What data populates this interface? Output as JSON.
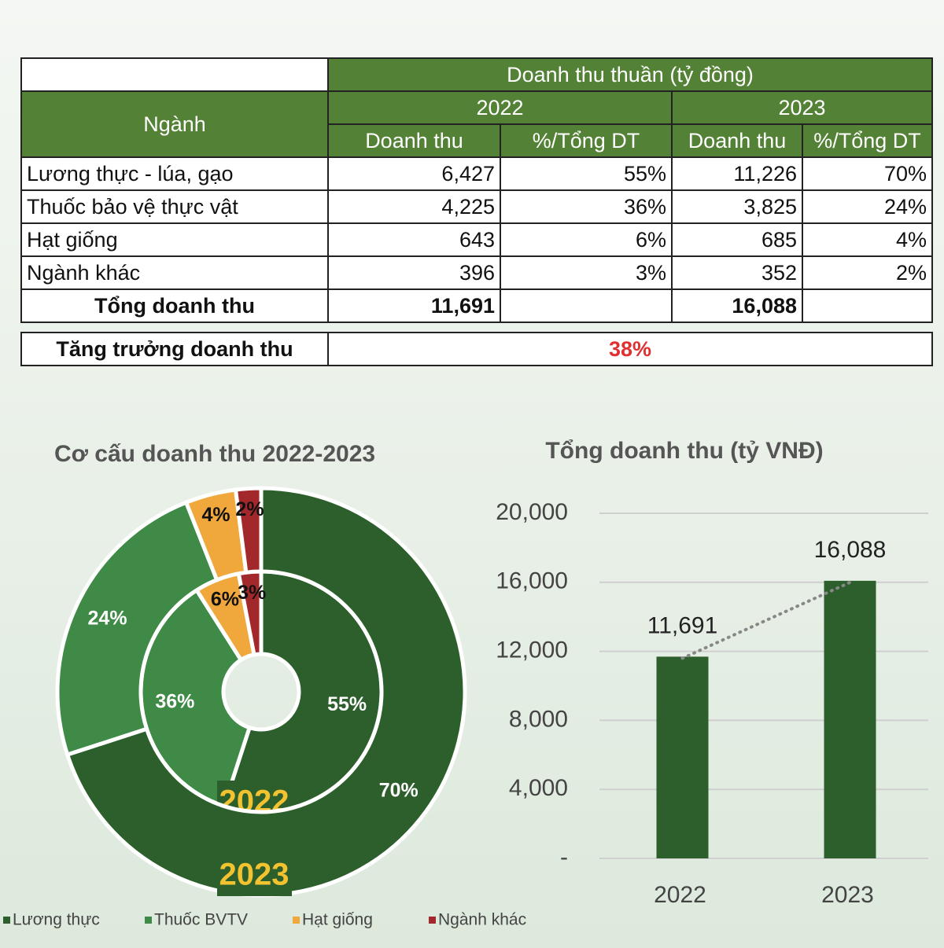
{
  "table": {
    "corner": "Ngành",
    "group": "Doanh thu thuần (tỷ đồng)",
    "years": [
      "2022",
      "2023"
    ],
    "columns": [
      "Doanh thu",
      "%/Tổng DT",
      "Doanh thu",
      "%/Tổng DT"
    ],
    "rows": [
      [
        "Lương thực - lúa, gạo",
        "6,427",
        "55%",
        "11,226",
        "70%"
      ],
      [
        "Thuốc bảo vệ thực vật",
        "4,225",
        "36%",
        "3,825",
        "24%"
      ],
      [
        "Hạt giống",
        "643",
        "6%",
        "685",
        "4%"
      ],
      [
        "Ngành khác",
        "396",
        "3%",
        "352",
        "2%"
      ]
    ],
    "total": {
      "label": "Tổng doanh thu",
      "values": [
        "11,691",
        "16,088"
      ]
    },
    "growth": {
      "label": "Tăng trưởng doanh thu",
      "value": "38%"
    }
  },
  "chart_data": [
    {
      "type": "donut",
      "title": "Cơ cấu doanh thu 2022-2023",
      "categories": [
        "Lương thực",
        "Thuốc BVTV",
        "Hạt giống",
        "Ngành khác"
      ],
      "colors": [
        "#2c5f2b",
        "#3f8a46",
        "#f0a83c",
        "#a3282b"
      ],
      "series": [
        {
          "name": "2022",
          "values": [
            55,
            36,
            6,
            3
          ],
          "value_labels": [
            "55%",
            "36%",
            "6%",
            "3%"
          ]
        },
        {
          "name": "2023",
          "values": [
            70,
            24,
            4,
            2
          ],
          "value_labels": [
            "70%",
            "24%",
            "4%",
            "2%"
          ]
        }
      ]
    },
    {
      "type": "bar",
      "title": "Tổng doanh thu (tỷ VNĐ)",
      "categories": [
        "2022",
        "2023"
      ],
      "values": [
        11691,
        16088
      ],
      "value_labels": [
        "11,691",
        "16,088"
      ],
      "color": "#2c5f2b",
      "ylim": [
        0,
        20000
      ],
      "yticks": [
        {
          "value": 0,
          "label": "-"
        },
        {
          "value": 4000,
          "label": "4,000"
        },
        {
          "value": 8000,
          "label": "8,000"
        },
        {
          "value": 12000,
          "label": "12,000"
        },
        {
          "value": 16000,
          "label": "16,000"
        },
        {
          "value": 20000,
          "label": "20,000"
        }
      ],
      "grid": true,
      "trend_line": true
    }
  ]
}
